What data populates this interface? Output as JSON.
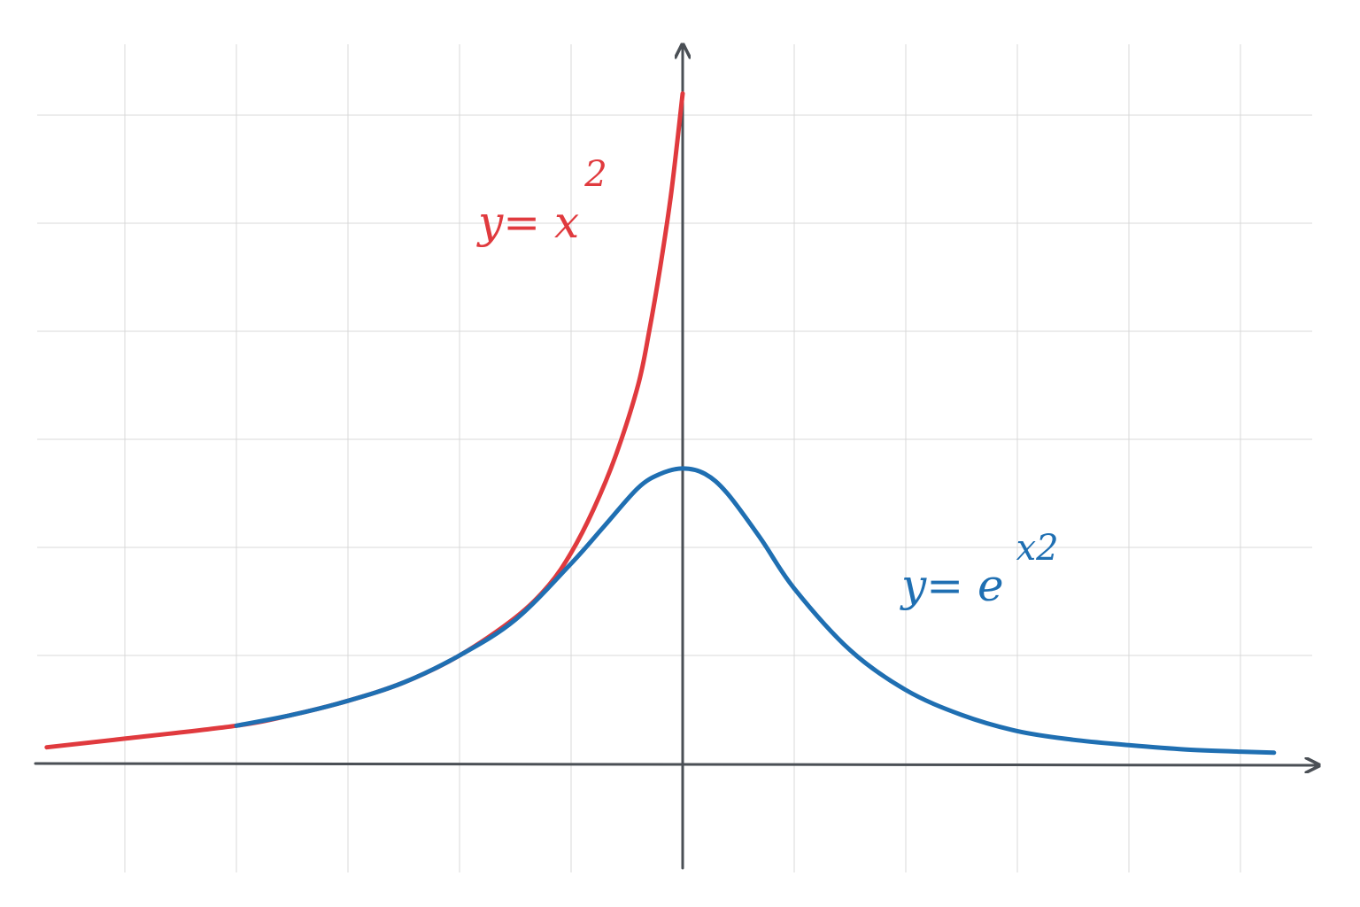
{
  "chart_data": {
    "type": "line",
    "title": "",
    "xlabel": "",
    "ylabel": "",
    "grid": true,
    "xlim": [
      -5.8,
      5.8
    ],
    "ylim": [
      -1.2,
      7.4
    ],
    "colors": {
      "axis": "#4a4f55",
      "grid": "#d9d9d9",
      "red": "#e03a3e",
      "blue": "#1f6fb2"
    },
    "series": [
      {
        "color": "#e03a3e",
        "x": [
          -5.7,
          -5,
          -4,
          -3.5,
          -3,
          -2.5,
          -2,
          -1.5,
          -1.2,
          -1,
          -0.8,
          -0.6,
          -0.4,
          -0.3,
          -0.2,
          -0.1,
          0
        ],
        "y": [
          0.15,
          0.23,
          0.35,
          0.45,
          0.58,
          0.75,
          1.0,
          1.35,
          1.65,
          1.95,
          2.35,
          2.85,
          3.5,
          4.0,
          4.6,
          5.3,
          6.2
        ]
      },
      {
        "color": "#1f6fb2",
        "x": [
          -4,
          -3.5,
          -3,
          -2.5,
          -2,
          -1.5,
          -1,
          -0.7,
          -0.4,
          -0.2,
          0,
          0.2,
          0.4,
          0.7,
          1,
          1.5,
          2,
          2.5,
          3,
          3.5,
          4,
          4.5,
          5,
          5.3
        ],
        "y": [
          0.35,
          0.45,
          0.58,
          0.75,
          1.0,
          1.33,
          1.85,
          2.2,
          2.55,
          2.68,
          2.73,
          2.68,
          2.5,
          2.08,
          1.62,
          1.05,
          0.68,
          0.45,
          0.3,
          0.22,
          0.17,
          0.13,
          0.11,
          0.1
        ]
      }
    ],
    "annotations": [
      {
        "color": "#e03a3e",
        "main": "y= x",
        "exponent": "2"
      },
      {
        "color": "#1f6fb2",
        "main": "y= e",
        "exponent": "x2"
      }
    ]
  }
}
